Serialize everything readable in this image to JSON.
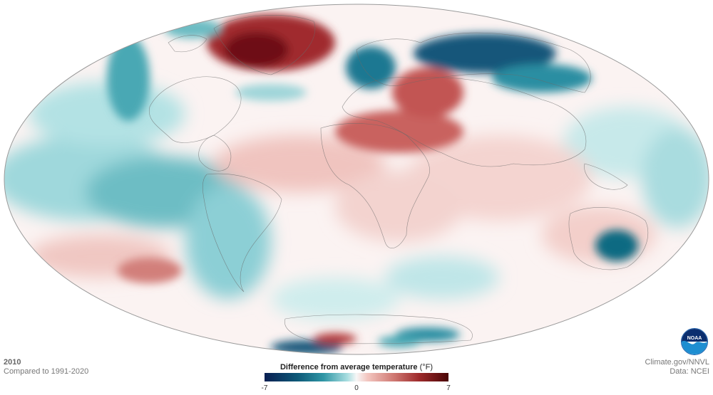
{
  "year": "2010",
  "comparison": "Compared to 1991-2020",
  "credit": {
    "line1": "Climate.gov/NNVL",
    "line2": "Data: NCEI"
  },
  "legend": {
    "title": "Difference from average temperature",
    "unit": "(°F)",
    "min_label": "-7",
    "zero_label": "0",
    "max_label": "7",
    "min_value": -7,
    "max_value": 7,
    "colors": {
      "cold_extreme": "#0a1f52",
      "cold": "#2f96a5",
      "neutral": "#f7f7f7",
      "warm": "#d07a74",
      "warm_extreme": "#4a0506"
    }
  },
  "logo": {
    "text": "NOAA",
    "icon": "noaa-logo-icon"
  }
}
